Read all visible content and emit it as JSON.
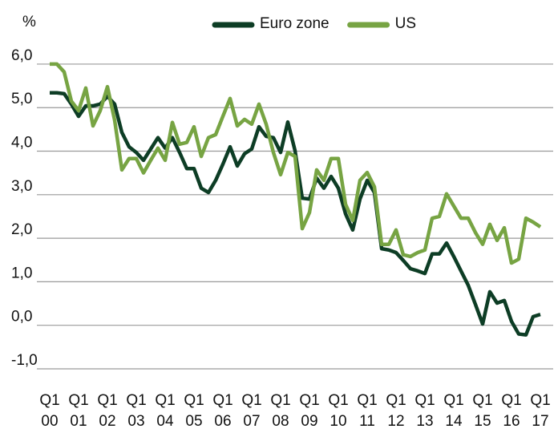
{
  "chart_data": {
    "type": "line",
    "y_axis_label": "%",
    "categories": [
      "Q1 00",
      null,
      null,
      null,
      "Q1 01",
      null,
      null,
      null,
      "Q1 02",
      null,
      null,
      null,
      "Q1 03",
      null,
      null,
      null,
      "Q1 04",
      null,
      null,
      null,
      "Q1 05",
      null,
      null,
      null,
      "Q1 06",
      null,
      null,
      null,
      "Q1 07",
      null,
      null,
      null,
      "Q1 08",
      null,
      null,
      null,
      "Q1 09",
      null,
      null,
      null,
      "Q1 10",
      null,
      null,
      null,
      "Q1 11",
      null,
      null,
      null,
      "Q1 12",
      null,
      null,
      null,
      "Q1 13",
      null,
      null,
      null,
      "Q1 14",
      null,
      null,
      null,
      "Q1 15",
      null,
      null,
      null,
      "Q1 16",
      null,
      null,
      null,
      "Q1 17"
    ],
    "series": [
      {
        "name": "Euro zone",
        "color": "#0d3d25",
        "values": [
          5.34,
          5.34,
          5.32,
          5.08,
          4.8,
          5.04,
          5.04,
          5.08,
          5.26,
          5.08,
          4.43,
          4.1,
          3.97,
          3.79,
          4.05,
          4.31,
          4.07,
          4.31,
          3.97,
          3.6,
          3.6,
          3.15,
          3.05,
          3.33,
          3.7,
          4.1,
          3.66,
          3.94,
          4.05,
          4.56,
          4.34,
          4.31,
          3.97,
          4.67,
          4.01,
          2.92,
          2.9,
          3.38,
          3.15,
          3.42,
          3.15,
          2.56,
          2.19,
          2.9,
          3.33,
          3.05,
          1.76,
          1.73,
          1.67,
          1.49,
          1.3,
          1.25,
          1.19,
          1.64,
          1.64,
          1.89,
          1.58,
          1.25,
          0.92,
          0.48,
          0.03,
          0.77,
          0.51,
          0.57,
          0.09,
          -0.2,
          -0.22,
          0.2,
          0.25
        ]
      },
      {
        "name": "US",
        "color": "#77a443",
        "values": [
          6.0,
          6.0,
          5.82,
          5.15,
          4.93,
          5.45,
          4.58,
          4.93,
          5.48,
          4.71,
          3.57,
          3.83,
          3.83,
          3.5,
          3.79,
          4.07,
          3.79,
          4.66,
          4.16,
          4.2,
          4.56,
          3.88,
          4.31,
          4.38,
          4.8,
          5.21,
          4.58,
          4.73,
          4.62,
          5.08,
          4.62,
          3.97,
          3.46,
          3.97,
          3.88,
          2.22,
          2.59,
          3.57,
          3.33,
          3.83,
          3.83,
          2.78,
          2.41,
          3.33,
          3.51,
          3.18,
          1.86,
          1.86,
          2.19,
          1.62,
          1.58,
          1.67,
          1.73,
          2.46,
          2.5,
          3.02,
          2.74,
          2.46,
          2.46,
          2.13,
          1.86,
          2.32,
          1.95,
          2.24,
          1.43,
          1.52,
          2.46,
          2.37,
          2.26
        ]
      }
    ],
    "ylim": [
      -1,
      6.4
    ],
    "yticks": [
      {
        "value": 6,
        "label": "6,0"
      },
      {
        "value": 5,
        "label": "5,0"
      },
      {
        "value": 4,
        "label": "4,0"
      },
      {
        "value": 3,
        "label": "3,0"
      },
      {
        "value": 2,
        "label": "2,0"
      },
      {
        "value": 1,
        "label": "1,0"
      },
      {
        "value": 0,
        "label": "0,0"
      },
      {
        "value": -1,
        "label": "-1,0"
      }
    ],
    "grid": true,
    "legend": "top"
  }
}
